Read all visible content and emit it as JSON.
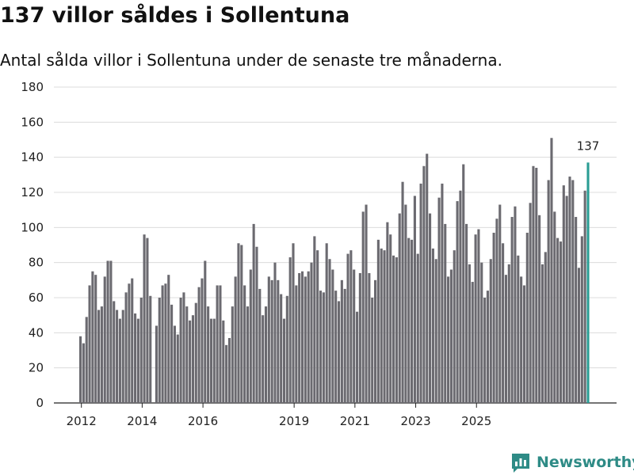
{
  "chart_data": {
    "type": "bar",
    "title": "137 villor såldes i Sollentuna",
    "subtitle": "Antal sålda villor i Sollentuna under de senaste tre månaderna.",
    "ylim": [
      0,
      180
    ],
    "yticks": [
      "0",
      "20",
      "40",
      "60",
      "80",
      "100",
      "120",
      "140",
      "160",
      "180"
    ],
    "xtick_labels": [
      "2012",
      "2014",
      "2016",
      "2019",
      "2021",
      "2023",
      "2025"
    ],
    "xtick_positions": [
      0.3,
      20.3,
      40.3,
      70.3,
      90.3,
      110.3,
      130.3
    ],
    "highlight_color": "#2a9d94",
    "bar_color": "#6b6a70",
    "highlight_label": "137",
    "values": [
      38,
      34,
      49,
      67,
      75,
      73,
      53,
      55,
      72,
      81,
      81,
      58,
      53,
      48,
      53,
      63,
      68,
      71,
      51,
      48,
      60,
      96,
      94,
      61,
      0,
      44,
      60,
      67,
      68,
      73,
      56,
      44,
      39,
      60,
      63,
      55,
      47,
      50,
      57,
      66,
      71,
      81,
      55,
      48,
      48,
      67,
      67,
      47,
      33,
      37,
      55,
      72,
      91,
      90,
      67,
      55,
      76,
      102,
      89,
      65,
      50,
      55,
      72,
      70,
      80,
      70,
      62,
      48,
      61,
      83,
      91,
      67,
      74,
      75,
      72,
      75,
      80,
      95,
      87,
      64,
      63,
      91,
      82,
      76,
      64,
      58,
      70,
      65,
      85,
      87,
      76,
      52,
      74,
      109,
      113,
      74,
      60,
      70,
      93,
      88,
      87,
      103,
      96,
      84,
      83,
      108,
      126,
      113,
      94,
      93,
      118,
      85,
      125,
      135,
      142,
      108,
      88,
      82,
      117,
      125,
      102,
      72,
      76,
      87,
      115,
      121,
      136,
      102,
      79,
      69,
      96,
      99,
      80,
      60,
      64,
      82,
      97,
      105,
      113,
      91,
      73,
      79,
      106,
      112,
      84,
      72,
      67,
      97,
      114,
      135,
      134,
      107,
      79,
      86,
      127,
      151,
      109,
      94,
      92,
      124,
      118,
      129,
      127,
      106,
      77,
      95,
      121,
      137
    ]
  },
  "logo": {
    "text": "Newsworthy",
    "icon": "newsworthy-logo-icon"
  }
}
